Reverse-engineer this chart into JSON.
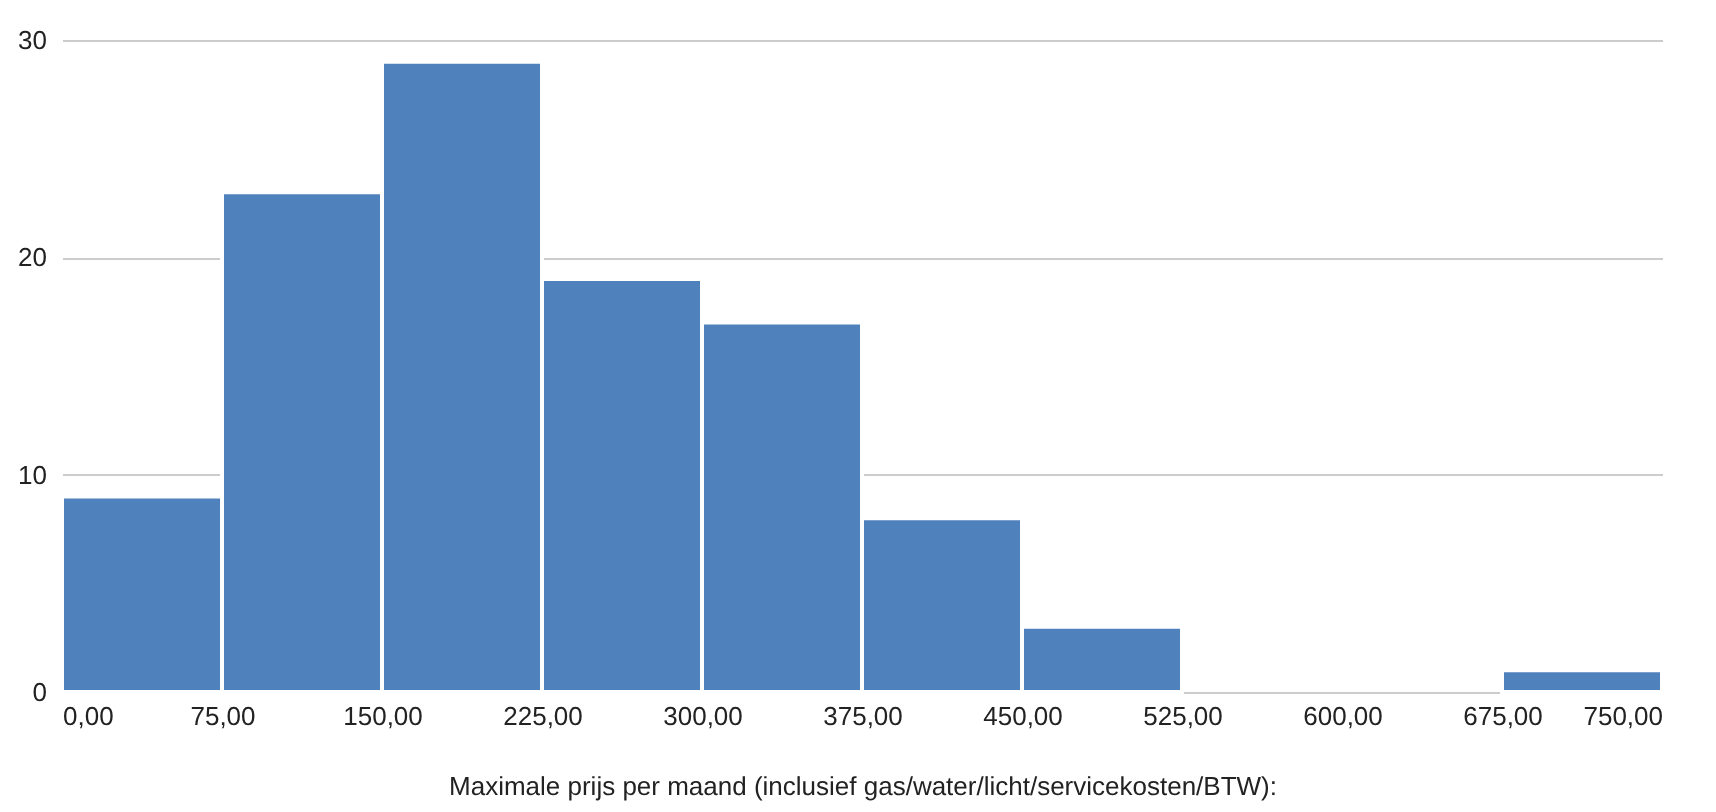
{
  "chart_data": {
    "type": "histogram",
    "xlabel": "Maximale prijs per maand (inclusief gas/water/licht/servicekosten/BTW):",
    "bins": [
      0,
      75,
      150,
      225,
      300,
      375,
      450,
      525,
      600,
      675,
      750
    ],
    "values": [
      9,
      23,
      29,
      19,
      17,
      8,
      3,
      0,
      0,
      1
    ],
    "color": "#4f81bd",
    "xlim": [
      0,
      750
    ],
    "xticks": [
      {
        "value": 0,
        "label": "0,00"
      },
      {
        "value": 75,
        "label": "75,00"
      },
      {
        "value": 150,
        "label": "150,00"
      },
      {
        "value": 225,
        "label": "225,00"
      },
      {
        "value": 300,
        "label": "300,00"
      },
      {
        "value": 375,
        "label": "375,00"
      },
      {
        "value": 450,
        "label": "450,00"
      },
      {
        "value": 525,
        "label": "525,00"
      },
      {
        "value": 600,
        "label": "600,00"
      },
      {
        "value": 675,
        "label": "675,00"
      },
      {
        "value": 750,
        "label": "750,00"
      }
    ],
    "ylim": [
      0,
      30
    ],
    "yticks": [
      0,
      10,
      20,
      30
    ],
    "grid": "y"
  }
}
